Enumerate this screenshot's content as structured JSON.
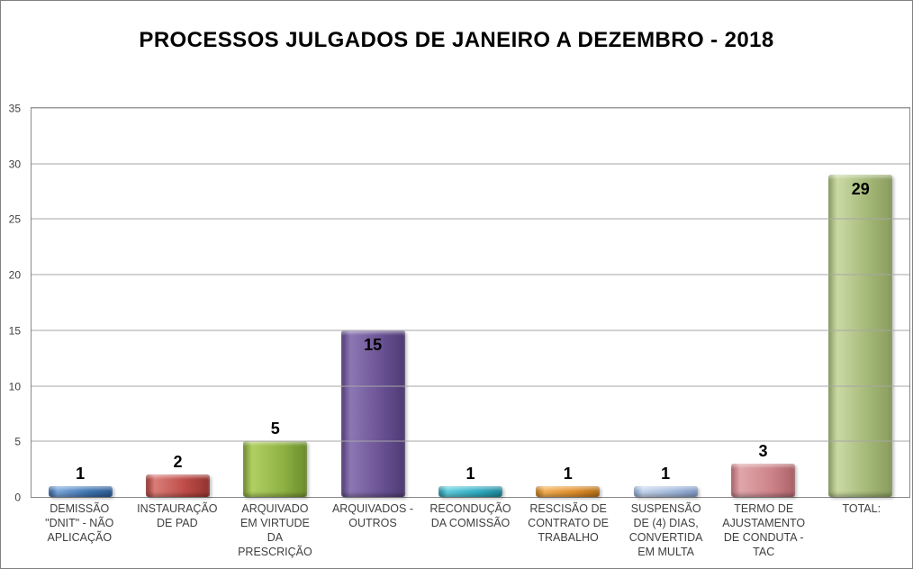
{
  "chart_data": {
    "type": "bar",
    "title": "PROCESSOS JULGADOS DE JANEIRO A DEZEMBRO - 2018",
    "categories": [
      "DEMISSÃO\n\"DNIT\" - NÃO\nAPLICAÇÃO",
      "INSTAURAÇÃO\nDE PAD",
      "ARQUIVADO\nEM VIRTUDE\nDA\nPRESCRIÇÃO",
      "ARQUIVADOS -\nOUTROS",
      "RECONDUÇÃO\nDA COMISSÃO",
      "RESCISÃO DE\nCONTRATO DE\nTRABALHO",
      "SUSPENSÃO\nDE (4) DIAS,\nCONVERTIDA\nEM MULTA",
      "TERMO DE\nAJUSTAMENTO\nDE CONDUTA -\nTAC",
      "TOTAL:"
    ],
    "values": [
      1,
      2,
      5,
      15,
      1,
      1,
      1,
      3,
      29
    ],
    "data_labels": [
      1,
      2,
      5,
      15,
      1,
      1,
      1,
      3,
      29
    ],
    "xlabel": "",
    "ylabel": "",
    "ylim": [
      0,
      35
    ],
    "yticks": [
      0,
      5,
      10,
      15,
      20,
      25,
      30,
      35
    ],
    "grid": "horizontal",
    "legend": "none",
    "bar_colors": [
      {
        "main": "#3f76b4",
        "light": "#7aa7dc",
        "dark": "#2c5a92"
      },
      {
        "main": "#bd4b47",
        "light": "#da7d78",
        "dark": "#93332f"
      },
      {
        "main": "#8fb244",
        "light": "#b1cf63",
        "dark": "#6b8c2c"
      },
      {
        "main": "#6a5294",
        "light": "#8d77b3",
        "dark": "#4e3a73"
      },
      {
        "main": "#31aec4",
        "light": "#63d0e0",
        "dark": "#1f8799"
      },
      {
        "main": "#e28f2b",
        "light": "#f4b158",
        "dark": "#b56f16"
      },
      {
        "main": "#a3badd",
        "light": "#c6d6ee",
        "dark": "#7f99c4"
      },
      {
        "main": "#cd848a",
        "light": "#e0a6ab",
        "dark": "#aa6267"
      },
      {
        "main": "#a4b877",
        "light": "#c9daa4",
        "dark": "#899c5e"
      }
    ],
    "style_colors": {
      "background": "#ffffff",
      "outer_border": "#808080",
      "plot_border": "#8a8a8a",
      "gridline": "#a6a6a6",
      "tick_label": "#3f3f3f",
      "category_label": "#3f3f3f",
      "value_label": "#000000",
      "title": "#000000"
    }
  }
}
